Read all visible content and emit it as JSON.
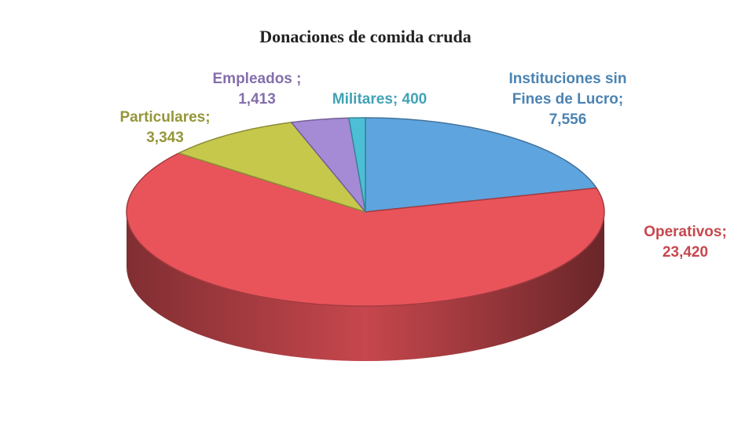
{
  "chart_data": {
    "type": "pie",
    "title": "Donaciones de comida cruda",
    "categories": [
      "Instituciones sin Fines de Lucro;",
      "Operativos;",
      "Particulares;",
      "Empleados ;",
      "Militares;"
    ],
    "values": [
      7556,
      23420,
      3343,
      1413,
      400
    ],
    "value_labels": [
      "7,556",
      "23,420",
      "3,343",
      "1,413",
      "400"
    ],
    "colors": [
      "#5ea4de",
      "#e9545b",
      "#c6c84c",
      "#a58ad6",
      "#4cbfd6"
    ]
  }
}
